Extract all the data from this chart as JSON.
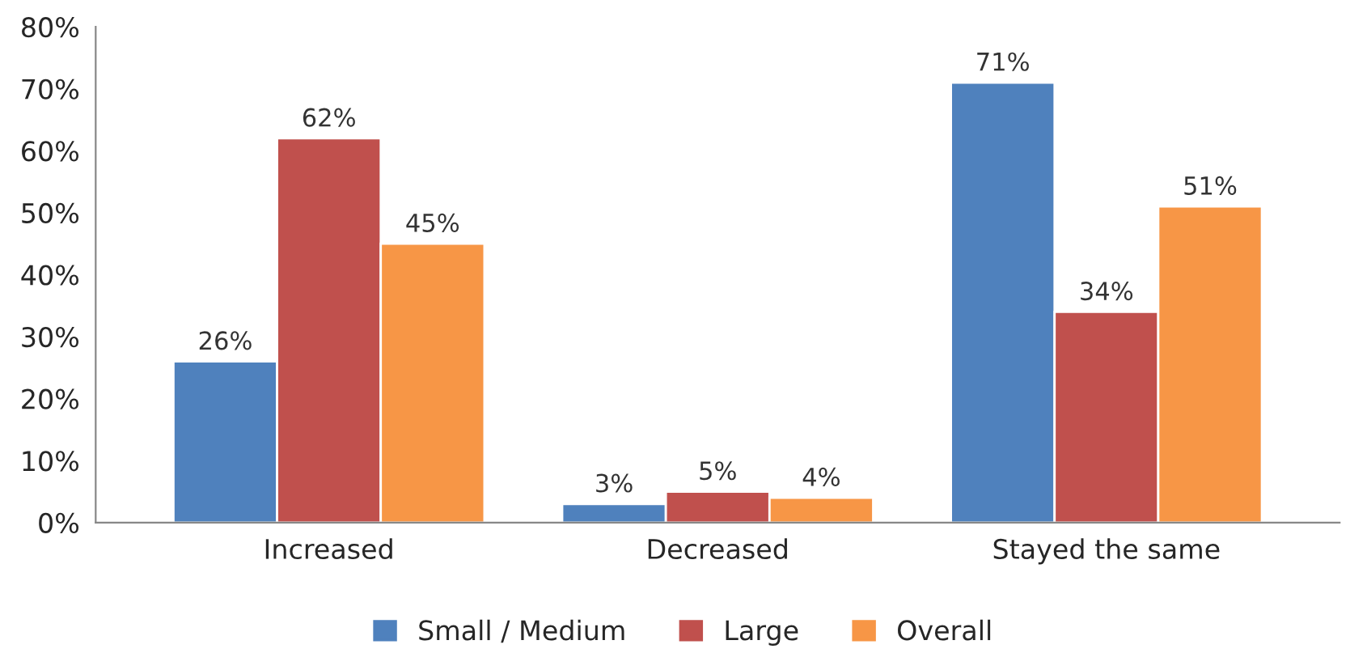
{
  "chart_data": {
    "type": "bar",
    "categories": [
      "Increased",
      "Decreased",
      "Stayed the same"
    ],
    "series": [
      {
        "name": "Small / Medium",
        "color": "#4f81bd",
        "values": [
          26,
          3,
          71
        ],
        "value_labels": [
          "26%",
          "3%",
          "71%"
        ]
      },
      {
        "name": "Large",
        "color": "#c0504d",
        "values": [
          62,
          5,
          34
        ],
        "value_labels": [
          "62%",
          "5%",
          "34%"
        ]
      },
      {
        "name": "Overall",
        "color": "#f79646",
        "values": [
          45,
          4,
          51
        ],
        "value_labels": [
          "45%",
          "4%",
          "51%"
        ]
      }
    ],
    "ylim": [
      0,
      80
    ],
    "yticks": [
      {
        "value": 0,
        "label": "0%"
      },
      {
        "value": 10,
        "label": "10%"
      },
      {
        "value": 20,
        "label": "20%"
      },
      {
        "value": 30,
        "label": "30%"
      },
      {
        "value": 40,
        "label": "40%"
      },
      {
        "value": 50,
        "label": "50%"
      },
      {
        "value": 60,
        "label": "60%"
      },
      {
        "value": 70,
        "label": "70%"
      },
      {
        "value": 80,
        "label": "80%"
      }
    ],
    "legend": "bottom"
  }
}
